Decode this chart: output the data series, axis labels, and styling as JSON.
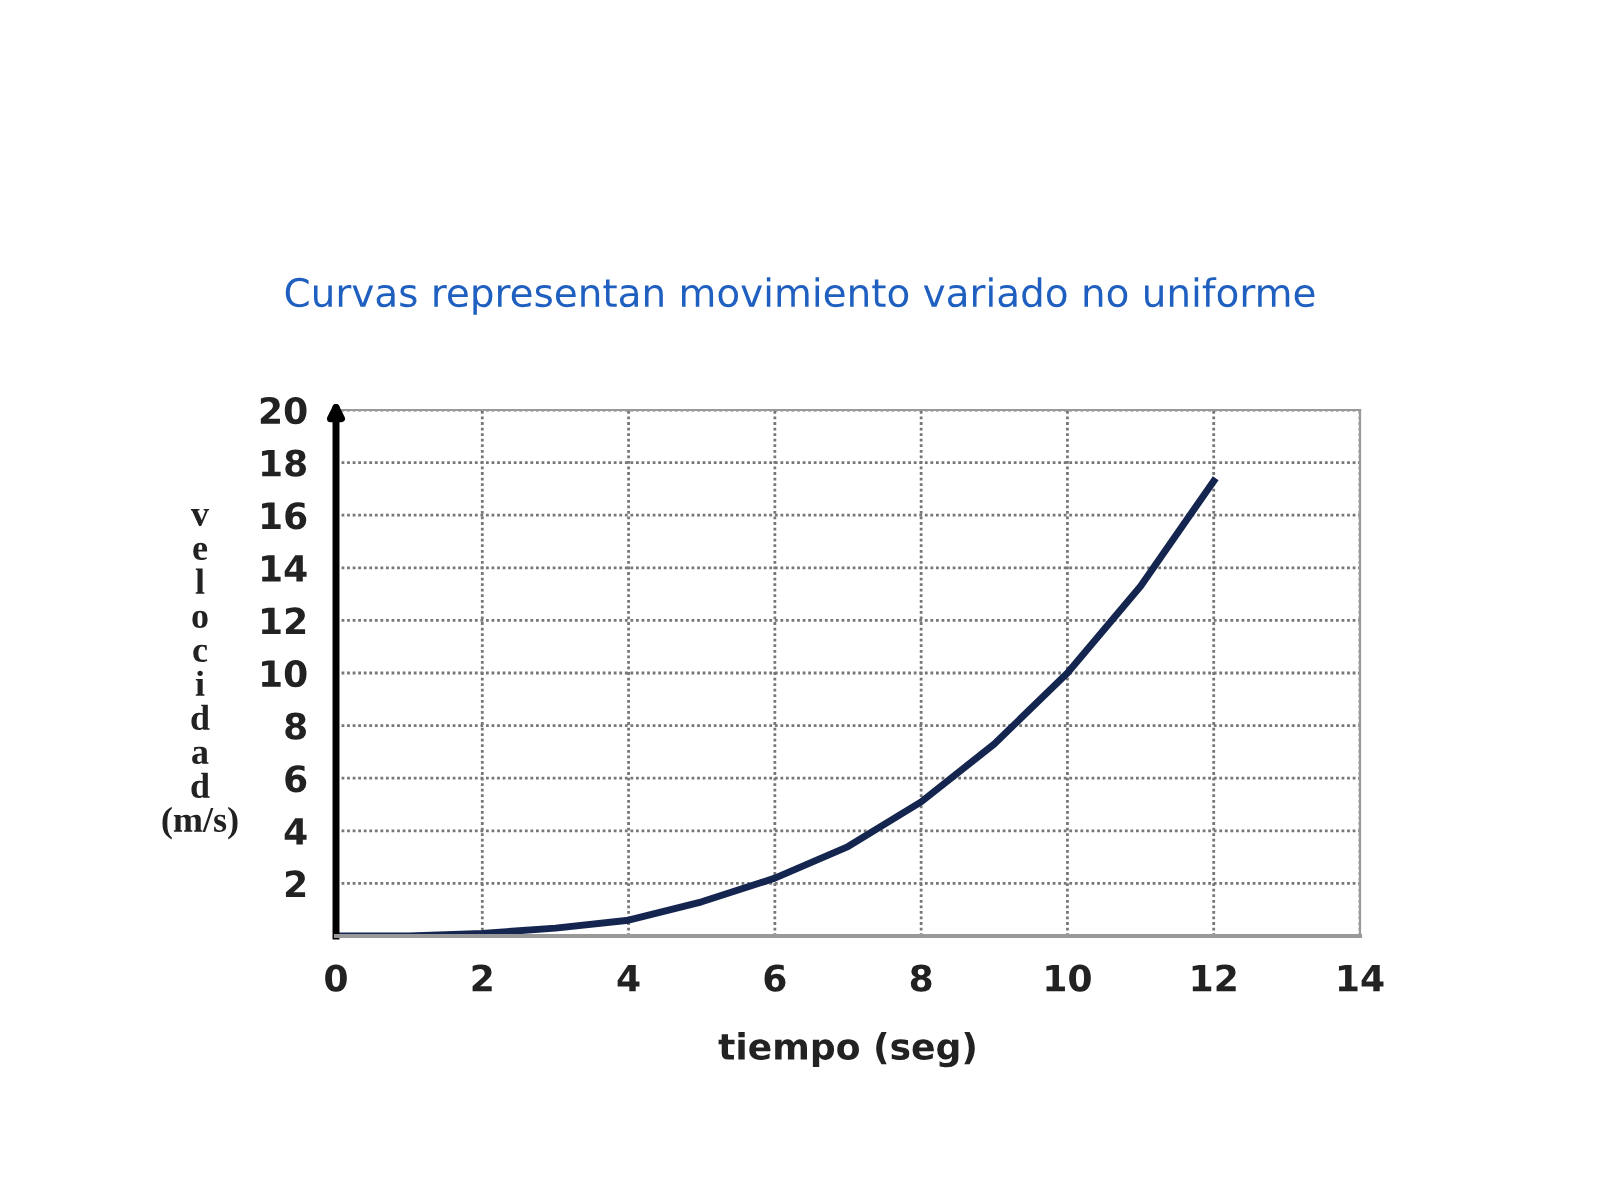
{
  "chart_data": {
    "type": "line",
    "title": "Curvas representan movimiento variado no uniforme",
    "xlabel": "tiempo (seg)",
    "ylabel": "velocidad (m/s)",
    "x": [
      0,
      1,
      2,
      3,
      4,
      5,
      6,
      7,
      8,
      9,
      10,
      11,
      12
    ],
    "series": [
      {
        "color": "#14264f",
        "values": [
          0,
          0,
          0.1,
          0.3,
          0.6,
          1.3,
          2.2,
          3.4,
          5.1,
          7.3,
          10,
          13.3,
          17.3
        ]
      }
    ],
    "xlim": [
      0,
      14
    ],
    "ylim": [
      0,
      20
    ],
    "xticks": [
      0,
      2,
      4,
      6,
      8,
      10,
      12,
      14
    ],
    "yticks": [
      {
        "value": 0,
        "label": null
      },
      2,
      4,
      6,
      8,
      10,
      12,
      14,
      16,
      18,
      20
    ],
    "grid": true,
    "marker": "none",
    "line_style": "solid"
  }
}
